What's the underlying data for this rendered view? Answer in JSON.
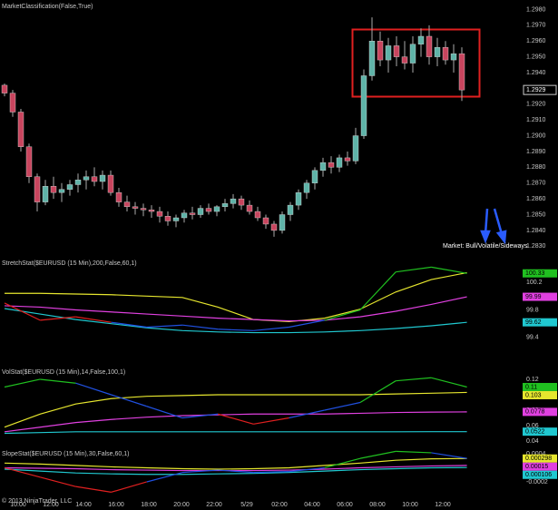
{
  "time_labels": [
    "10:00",
    "12:00",
    "14:00",
    "16:00",
    "18:00",
    "20:00",
    "22:00",
    "5/29",
    "02:00",
    "04:00",
    "06:00",
    "08:00",
    "10:00",
    "12:00"
  ],
  "copyright": "© 2013 NinjaTrader, LLC",
  "chart_data": [
    {
      "type": "candlestick",
      "title": "MarketClassification(False,True)",
      "up_color": "#5fb3a8",
      "down_color": "#c8455e",
      "open": [
        1.2932,
        1.2927,
        1.2915,
        1.2893,
        1.2874,
        1.2858,
        1.2868,
        1.2864,
        1.2866,
        1.2869,
        1.2872,
        1.2874,
        1.2871,
        1.2875,
        1.2864,
        1.2858,
        1.2855,
        1.2854,
        1.2853,
        1.2852,
        1.2849,
        1.2846,
        1.2848,
        1.2851,
        1.285,
        1.2854,
        1.2852,
        1.2855,
        1.2857,
        1.286,
        1.2856,
        1.2852,
        1.2848,
        1.2844,
        1.284,
        1.285,
        1.2856,
        1.2864,
        1.287,
        1.2878,
        1.2883,
        1.288,
        1.2886,
        1.2884,
        1.29,
        1.2938,
        1.296,
        1.2948,
        1.2957,
        1.295,
        1.2946,
        1.2958,
        1.2963,
        1.295,
        1.2956,
        1.2948,
        1.2952
      ],
      "high": [
        1.2933,
        1.2929,
        1.2917,
        1.2895,
        1.2876,
        1.2872,
        1.2874,
        1.287,
        1.2872,
        1.2876,
        1.2878,
        1.288,
        1.2878,
        1.2878,
        1.2867,
        1.2862,
        1.2858,
        1.2857,
        1.2856,
        1.2855,
        1.2852,
        1.285,
        1.2853,
        1.2855,
        1.2856,
        1.2857,
        1.2856,
        1.286,
        1.2863,
        1.2862,
        1.2859,
        1.2855,
        1.285,
        1.2846,
        1.2852,
        1.2858,
        1.2866,
        1.2872,
        1.288,
        1.2886,
        1.2887,
        1.2888,
        1.289,
        1.2905,
        1.2942,
        1.2975,
        1.2966,
        1.2962,
        1.2963,
        1.296,
        1.2963,
        1.2968,
        1.297,
        1.2962,
        1.296,
        1.2958,
        1.2956
      ],
      "low": [
        1.2925,
        1.2912,
        1.289,
        1.287,
        1.2852,
        1.2856,
        1.286,
        1.2858,
        1.2862,
        1.2864,
        1.2866,
        1.2868,
        1.2866,
        1.2862,
        1.2855,
        1.2852,
        1.285,
        1.2849,
        1.2848,
        1.2845,
        1.2843,
        1.2842,
        1.2845,
        1.2847,
        1.2848,
        1.285,
        1.2849,
        1.2852,
        1.2854,
        1.2853,
        1.285,
        1.2846,
        1.2841,
        1.2836,
        1.2838,
        1.2846,
        1.2853,
        1.286,
        1.2866,
        1.2874,
        1.2876,
        1.2877,
        1.2881,
        1.2882,
        1.2898,
        1.2935,
        1.2944,
        1.294,
        1.2944,
        1.2942,
        1.294,
        1.295,
        1.2945,
        1.2944,
        1.2945,
        1.294,
        1.2922
      ],
      "close": [
        1.2927,
        1.2915,
        1.2893,
        1.2874,
        1.2858,
        1.2868,
        1.2864,
        1.2866,
        1.2869,
        1.2872,
        1.2874,
        1.2871,
        1.2875,
        1.2864,
        1.2858,
        1.2855,
        1.2854,
        1.2853,
        1.2852,
        1.2849,
        1.2846,
        1.2848,
        1.2851,
        1.285,
        1.2854,
        1.2852,
        1.2855,
        1.2857,
        1.286,
        1.2856,
        1.2852,
        1.2848,
        1.2844,
        1.284,
        1.285,
        1.2856,
        1.2864,
        1.287,
        1.2878,
        1.2883,
        1.288,
        1.2886,
        1.2884,
        1.29,
        1.2938,
        1.296,
        1.2948,
        1.2957,
        1.295,
        1.2946,
        1.2958,
        1.2963,
        1.295,
        1.2956,
        1.2948,
        1.2952,
        1.2929
      ],
      "last_price": 1.2929,
      "annotation": "Market: Bull/Volatile/Sideways",
      "ylim": [
        1.2825,
        1.2986
      ],
      "yticks": [
        {
          "value": 1.283,
          "label": "1.2830"
        },
        {
          "value": 1.284,
          "label": "1.2840"
        },
        {
          "value": 1.285,
          "label": "1.2850"
        },
        {
          "value": 1.286,
          "label": "1.2860"
        },
        {
          "value": 1.287,
          "label": "1.2870"
        },
        {
          "value": 1.288,
          "label": "1.2880"
        },
        {
          "value": 1.289,
          "label": "1.2890"
        },
        {
          "value": 1.29,
          "label": "1.2900"
        },
        {
          "value": 1.291,
          "label": "1.2910"
        },
        {
          "value": 1.292,
          "label": "1.2920"
        },
        {
          "value": 1.293,
          "label": "1.2930"
        },
        {
          "value": 1.294,
          "label": "1.2940"
        },
        {
          "value": 1.295,
          "label": "1.2950"
        },
        {
          "value": 1.296,
          "label": "1.2960"
        },
        {
          "value": 1.297,
          "label": "1.2970"
        },
        {
          "value": 1.298,
          "label": "1.2980"
        }
      ]
    },
    {
      "type": "line",
      "title": "StretchStat($EURUSD (15 Min),200,False,60,1)",
      "ylim": [
        99.03,
        100.57
      ],
      "yticks": [
        99.4,
        99.8,
        100.2
      ],
      "series": [
        {
          "color": "#e6e62e",
          "last_label": false,
          "values": [
            100.04,
            100.04,
            100.03,
            100.02,
            100.0,
            99.98,
            99.84,
            99.66,
            99.63,
            99.68,
            99.81,
            100.06,
            100.24,
            100.34
          ]
        },
        {
          "color": "#e040e0",
          "last_label": true,
          "values": [
            99.86,
            99.84,
            99.8,
            99.77,
            99.74,
            99.71,
            99.68,
            99.66,
            99.64,
            99.65,
            99.7,
            99.78,
            99.88,
            99.99
          ]
        },
        {
          "color": "#20c8d0",
          "last_label": true,
          "values": [
            99.82,
            99.74,
            99.66,
            99.6,
            99.54,
            99.5,
            99.48,
            99.47,
            99.47,
            99.48,
            99.5,
            99.53,
            99.57,
            99.62
          ]
        }
      ],
      "stat": {
        "last_label": true,
        "values": [
          99.9,
          99.65,
          99.7,
          99.62,
          99.55,
          99.58,
          99.52,
          99.5,
          99.55,
          99.65,
          99.8,
          100.35,
          100.42,
          100.33
        ],
        "segment_colors": [
          "#e02020",
          "#e02020",
          "#e02020",
          "#2050e0",
          "#2050e0",
          "#2050e0",
          "#2050e0",
          "#2050e0",
          "#2050e0",
          "#20c020",
          "#20c020",
          "#20c020",
          "#20c020"
        ]
      }
    },
    {
      "type": "line",
      "title": "VolStat($EURUSD (15 Min),14,False,100,1)",
      "ylim": [
        0.033,
        0.1376
      ],
      "yticks": [
        0.04,
        0.06,
        0.08,
        0.1,
        0.12
      ],
      "series": [
        {
          "color": "#e6e62e",
          "last_label": true,
          "values": [
            0.058,
            0.075,
            0.088,
            0.095,
            0.098,
            0.099,
            0.1,
            0.1,
            0.1,
            0.1,
            0.1,
            0.101,
            0.102,
            0.103
          ]
        },
        {
          "color": "#e040e0",
          "last_label": true,
          "values": [
            0.052,
            0.058,
            0.064,
            0.068,
            0.071,
            0.073,
            0.074,
            0.075,
            0.075,
            0.075,
            0.076,
            0.077,
            0.0775,
            0.0778
          ]
        },
        {
          "color": "#20c8d0",
          "last_label": true,
          "values": [
            0.05,
            0.051,
            0.052,
            0.052,
            0.052,
            0.052,
            0.052,
            0.052,
            0.052,
            0.052,
            0.052,
            0.052,
            0.0522,
            0.0522
          ]
        }
      ],
      "stat": {
        "last_label": true,
        "values": [
          0.11,
          0.12,
          0.115,
          0.1,
          0.085,
          0.07,
          0.075,
          0.062,
          0.07,
          0.08,
          0.09,
          0.118,
          0.122,
          0.11
        ],
        "segment_colors": [
          "#20c020",
          "#20c020",
          "#2050e0",
          "#2050e0",
          "#2050e0",
          "#2050e0",
          "#e02020",
          "#e02020",
          "#2050e0",
          "#2050e0",
          "#20c020",
          "#20c020",
          "#20c020"
        ]
      }
    },
    {
      "type": "line",
      "title": "SlopeStat($EURUSD (15 Min),30,False,60,1)",
      "ylim": [
        -0.000568,
        0.000535
      ],
      "yticks": [
        -0.0002,
        0,
        0.0002,
        0.0004
      ],
      "series": [
        {
          "color": "#e6e62e",
          "last_label": true,
          "values": [
            0.0002,
            0.00018,
            0.00015,
            0.00012,
            0.0001,
            8e-05,
            7e-05,
            8e-05,
            0.0001,
            0.00015,
            0.0002,
            0.00026,
            0.00029,
            0.000298
          ]
        },
        {
          "color": "#e040e0",
          "last_label": true,
          "values": [
            0.0001,
            9e-05,
            8e-05,
            6e-05,
            5e-05,
            4e-05,
            4e-05,
            4e-05,
            5e-05,
            7e-05,
            0.0001,
            0.00012,
            0.00014,
            0.00015
          ]
        },
        {
          "color": "#20c8d0",
          "last_label": true,
          "values": [
            7e-05,
            3e-05,
            -1e-05,
            -3e-05,
            -4e-05,
            -4e-05,
            -3e-05,
            -2e-05,
            0,
            3e-05,
            6e-05,
            8e-05,
            0.0001,
            0.000106
          ]
        }
      ],
      "stat": {
        "last_label": false,
        "values": [
          0.0001,
          -0.0001,
          -0.0003,
          -0.00042,
          -0.0002,
          0,
          5e-05,
          0,
          2e-05,
          0.0001,
          0.0003,
          0.00045,
          0.00042,
          0.0003
        ],
        "segment_colors": [
          "#e02020",
          "#e02020",
          "#e02020",
          "#e02020",
          "#2050e0",
          "#2050e0",
          "#2050e0",
          "#2050e0",
          "#2050e0",
          "#20c020",
          "#20c020",
          "#20c020",
          "#2050e0"
        ]
      }
    }
  ]
}
